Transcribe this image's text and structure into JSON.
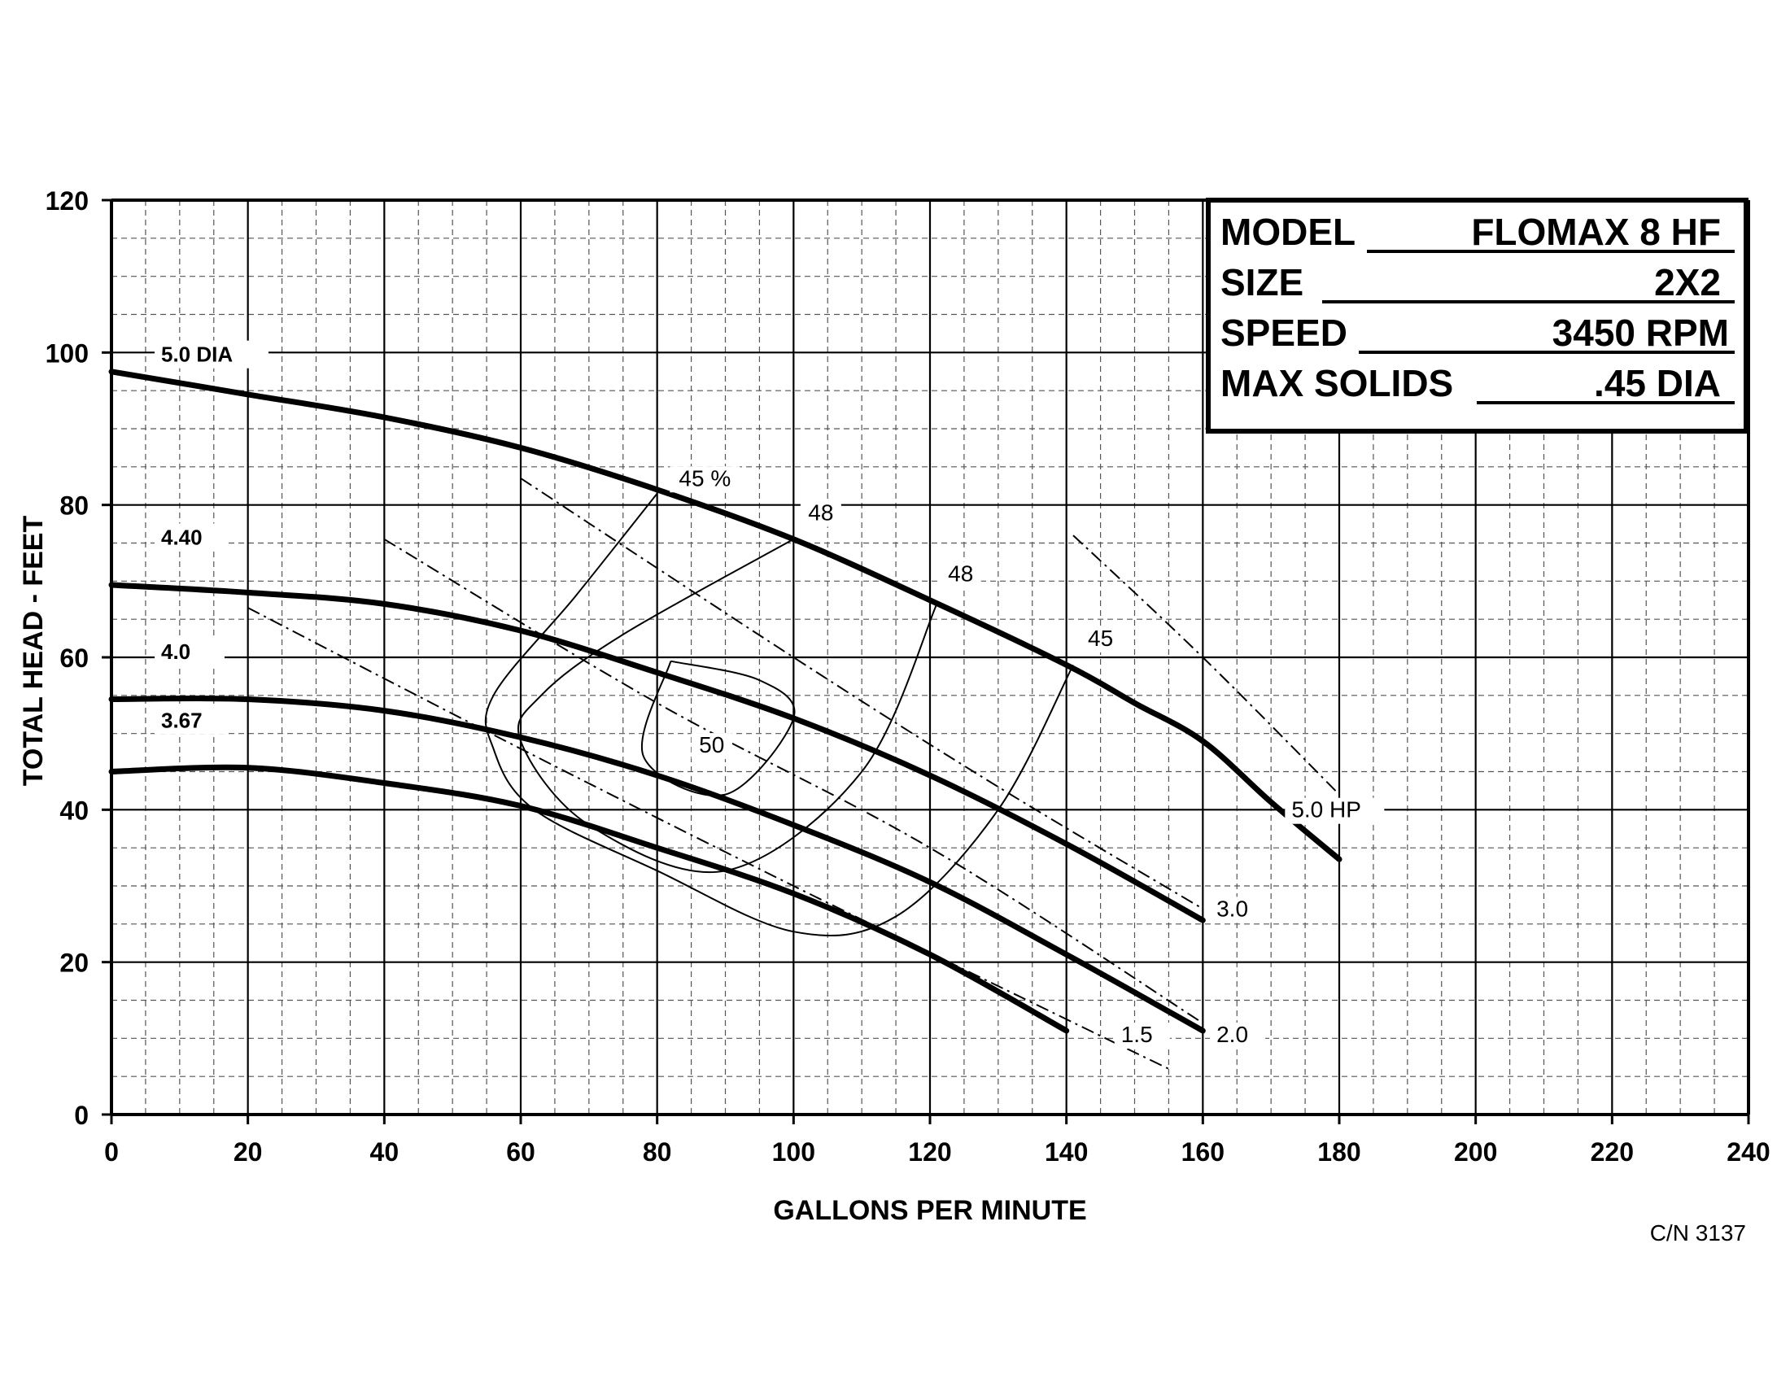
{
  "chart_data": {
    "type": "line",
    "xlabel": "GALLONS PER MINUTE",
    "ylabel": "TOTAL HEAD - FEET",
    "xlim": [
      0,
      240
    ],
    "ylim": [
      0,
      120
    ],
    "x_ticks": [
      "0",
      "20",
      "40",
      "60",
      "80",
      "100",
      "120",
      "140",
      "160",
      "180",
      "200",
      "220",
      "240"
    ],
    "y_ticks": [
      "0",
      "20",
      "40",
      "60",
      "80",
      "100",
      "120"
    ],
    "grid": true,
    "head_curves": [
      {
        "name": "5.0 DIA",
        "points": [
          [
            0,
            97.5
          ],
          [
            20,
            94.5
          ],
          [
            40,
            91.5
          ],
          [
            60,
            87.5
          ],
          [
            80,
            82
          ],
          [
            100,
            75.5
          ],
          [
            120,
            67.5
          ],
          [
            140,
            59
          ],
          [
            150,
            54
          ],
          [
            160,
            49
          ],
          [
            170,
            41
          ],
          [
            180,
            33.5
          ]
        ]
      },
      {
        "name": "4.40",
        "points": [
          [
            0,
            69.5
          ],
          [
            20,
            68.5
          ],
          [
            40,
            67
          ],
          [
            60,
            63.5
          ],
          [
            80,
            58
          ],
          [
            100,
            52
          ],
          [
            120,
            44.5
          ],
          [
            140,
            35.5
          ],
          [
            160,
            25.5
          ]
        ]
      },
      {
        "name": "4.0",
        "points": [
          [
            0,
            54.5
          ],
          [
            20,
            54.5
          ],
          [
            40,
            53
          ],
          [
            60,
            49.5
          ],
          [
            80,
            44.5
          ],
          [
            100,
            38
          ],
          [
            120,
            30.5
          ],
          [
            140,
            21
          ],
          [
            160,
            11
          ]
        ]
      },
      {
        "name": "3.67",
        "points": [
          [
            0,
            45
          ],
          [
            20,
            45.5
          ],
          [
            40,
            43.5
          ],
          [
            60,
            40.5
          ],
          [
            80,
            35
          ],
          [
            100,
            29
          ],
          [
            120,
            21
          ],
          [
            140,
            11
          ]
        ]
      }
    ],
    "efficiency_curves": [
      {
        "label": "45 %",
        "label_at": [
          87,
          82.5
        ],
        "points": [
          [
            80,
            81.5
          ],
          [
            68,
            68
          ],
          [
            56,
            55
          ],
          [
            56,
            48
          ],
          [
            62,
            40
          ],
          [
            80,
            32
          ],
          [
            100,
            24
          ],
          [
            115,
            26
          ],
          [
            130,
            40
          ],
          [
            141,
            59
          ]
        ]
      },
      {
        "label": "48",
        "label_at": [
          104,
          78
        ],
        "points": [
          [
            100,
            75.5
          ],
          [
            75,
            63
          ],
          [
            63,
            55
          ],
          [
            60,
            49
          ],
          [
            70,
            38
          ],
          [
            90,
            32
          ],
          [
            110,
            45
          ],
          [
            121,
            67
          ]
        ]
      },
      {
        "label": "50",
        "label_at": [
          88,
          47.5
        ],
        "points": [
          [
            82,
            59.5
          ],
          [
            95,
            57
          ],
          [
            100,
            52
          ],
          [
            90,
            42
          ],
          [
            78,
            47
          ],
          [
            82,
            59.5
          ]
        ]
      },
      {
        "label": "48",
        "label_at": [
          124.5,
          70
        ],
        "points": []
      },
      {
        "label": "45",
        "label_at": [
          145,
          61.5
        ],
        "points": []
      }
    ],
    "hp_curves": [
      {
        "label": "5.0 HP",
        "label_at": [
          173,
          39
        ],
        "points": [
          [
            141,
            76
          ],
          [
            160,
            60
          ],
          [
            180,
            42
          ]
        ]
      },
      {
        "label": "3.0",
        "label_at": [
          162,
          26
        ],
        "points": [
          [
            60,
            83.5
          ],
          [
            100,
            60
          ],
          [
            130,
            43
          ],
          [
            160,
            27
          ]
        ]
      },
      {
        "label": "2.0",
        "label_at": [
          162,
          9.5
        ],
        "points": [
          [
            40,
            75.5
          ],
          [
            80,
            54
          ],
          [
            120,
            35
          ],
          [
            160,
            12
          ]
        ]
      },
      {
        "label": "1.5",
        "label_at": [
          148,
          9.5
        ],
        "points": [
          [
            20,
            66.5
          ],
          [
            60,
            48
          ],
          [
            100,
            30
          ],
          [
            140,
            12.5
          ],
          [
            155,
            6
          ]
        ]
      }
    ]
  },
  "info_box": {
    "model_label": "MODEL",
    "model_value": "FLOMAX 8 HF",
    "size_label": "SIZE",
    "size_value": "2X2",
    "speed_label": "SPEED",
    "speed_value": "3450 RPM",
    "solids_label": "MAX SOLIDS",
    "solids_value": ".45 DIA"
  },
  "footnote": "C/N 3137"
}
